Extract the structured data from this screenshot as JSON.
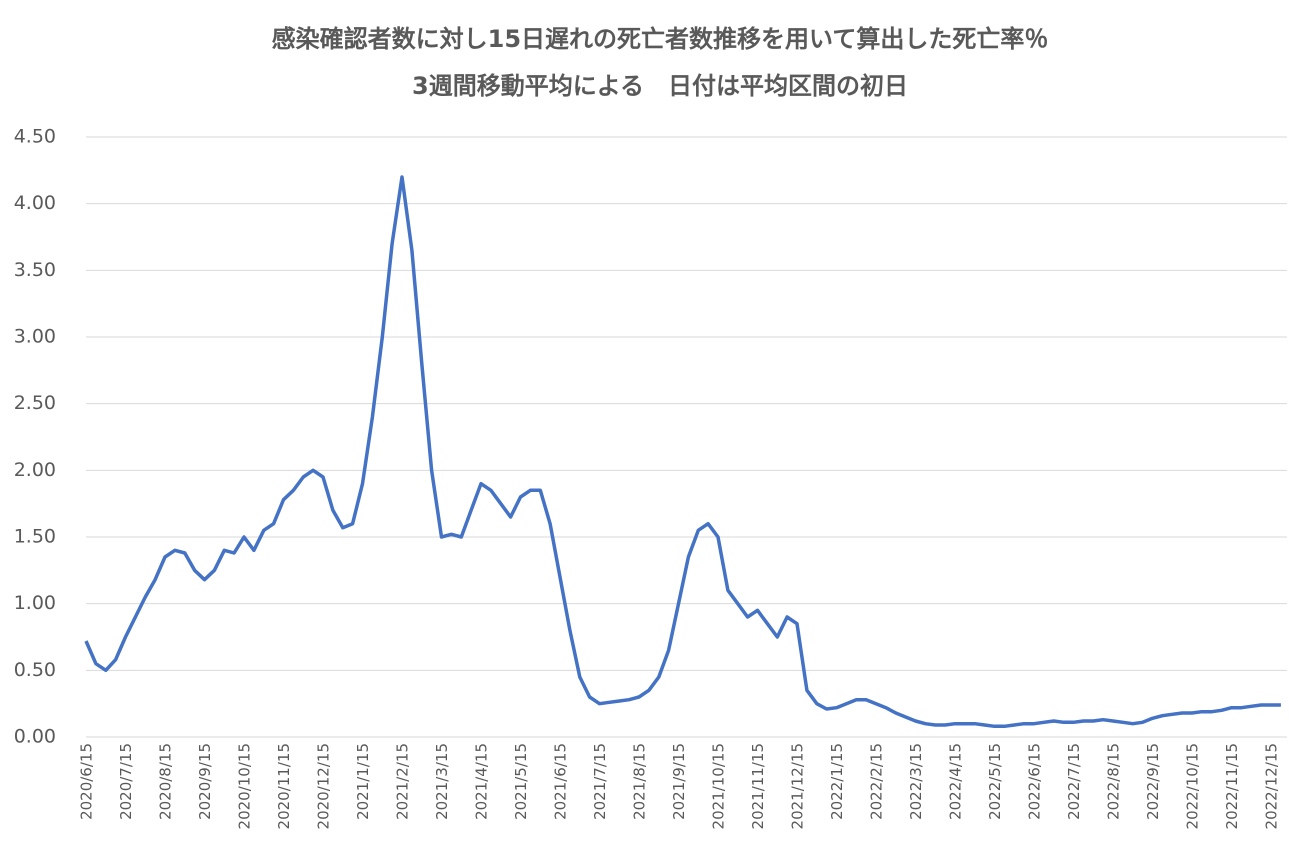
{
  "chart_data": {
    "type": "line",
    "title": "感染確認者数に対し15日遅れの死亡者数推移を用いて算出した死亡率％",
    "subtitle": "3週間移動平均による　日付は平均区間の初日",
    "categories": [
      "2020/6/15",
      null,
      null,
      null,
      "2020/7/15",
      null,
      null,
      null,
      "2020/8/15",
      null,
      null,
      null,
      "2020/9/15",
      null,
      null,
      null,
      "2020/10/15",
      null,
      null,
      null,
      "2020/11/15",
      null,
      null,
      null,
      "2020/12/15",
      null,
      null,
      null,
      "2021/1/15",
      null,
      null,
      null,
      "2021/2/15",
      null,
      null,
      null,
      "2021/3/15",
      null,
      null,
      null,
      "2021/4/15",
      null,
      null,
      null,
      "2021/5/15",
      null,
      null,
      null,
      "2021/6/15",
      null,
      null,
      null,
      "2021/7/15",
      null,
      null,
      null,
      "2021/8/15",
      null,
      null,
      null,
      "2021/9/15",
      null,
      null,
      null,
      "2021/10/15",
      null,
      null,
      null,
      "2021/11/15",
      null,
      null,
      null,
      "2021/12/15",
      null,
      null,
      null,
      "2022/1/15",
      null,
      null,
      null,
      "2022/2/15",
      null,
      null,
      null,
      "2022/3/15",
      null,
      null,
      null,
      "2022/4/15",
      null,
      null,
      null,
      "2022/5/15",
      null,
      null,
      null,
      "2022/6/15",
      null,
      null,
      null,
      "2022/7/15",
      null,
      null,
      null,
      "2022/8/15",
      null,
      null,
      null,
      "2022/9/15",
      null,
      null,
      null,
      "2022/10/15",
      null,
      null,
      null,
      "2022/11/15",
      null,
      null,
      null,
      "2022/12/15",
      null
    ],
    "series": [
      {
        "name": "死亡率",
        "color": "#4472c4",
        "values": [
          0.72,
          0.55,
          0.5,
          0.58,
          0.75,
          0.9,
          1.05,
          1.18,
          1.35,
          1.4,
          1.38,
          1.25,
          1.18,
          1.25,
          1.4,
          1.38,
          1.5,
          1.4,
          1.55,
          1.6,
          1.78,
          1.85,
          1.95,
          2.0,
          1.95,
          1.7,
          1.57,
          1.6,
          1.9,
          2.4,
          3.0,
          3.7,
          4.2,
          3.65,
          2.8,
          2.0,
          1.5,
          1.52,
          1.5,
          1.7,
          1.9,
          1.85,
          1.75,
          1.65,
          1.8,
          1.85,
          1.85,
          1.6,
          1.2,
          0.8,
          0.45,
          0.3,
          0.25,
          0.26,
          0.27,
          0.28,
          0.3,
          0.35,
          0.45,
          0.65,
          1.0,
          1.35,
          1.55,
          1.6,
          1.5,
          1.1,
          1.0,
          0.9,
          0.95,
          0.85,
          0.75,
          0.9,
          0.85,
          0.35,
          0.25,
          0.21,
          0.22,
          0.25,
          0.28,
          0.28,
          0.25,
          0.22,
          0.18,
          0.15,
          0.12,
          0.1,
          0.09,
          0.09,
          0.1,
          0.1,
          0.1,
          0.09,
          0.08,
          0.08,
          0.09,
          0.1,
          0.1,
          0.11,
          0.12,
          0.11,
          0.11,
          0.12,
          0.12,
          0.13,
          0.12,
          0.11,
          0.1,
          0.11,
          0.14,
          0.16,
          0.17,
          0.18,
          0.18,
          0.19,
          0.19,
          0.2,
          0.22,
          0.22,
          0.23,
          0.24,
          0.24,
          0.24
        ]
      }
    ],
    "ylim": [
      0,
      4.5
    ],
    "yticks": [
      {
        "value": 0,
        "label": "0.00"
      },
      {
        "value": 0.5,
        "label": "0.50"
      },
      {
        "value": 1,
        "label": "1.00"
      },
      {
        "value": 1.5,
        "label": "1.50"
      },
      {
        "value": 2,
        "label": "2.00"
      },
      {
        "value": 2.5,
        "label": "2.50"
      },
      {
        "value": 3,
        "label": "3.00"
      },
      {
        "value": 3.5,
        "label": "3.50"
      },
      {
        "value": 4,
        "label": "4.00"
      },
      {
        "value": 4.5,
        "label": "4.50"
      }
    ],
    "grid": true
  }
}
